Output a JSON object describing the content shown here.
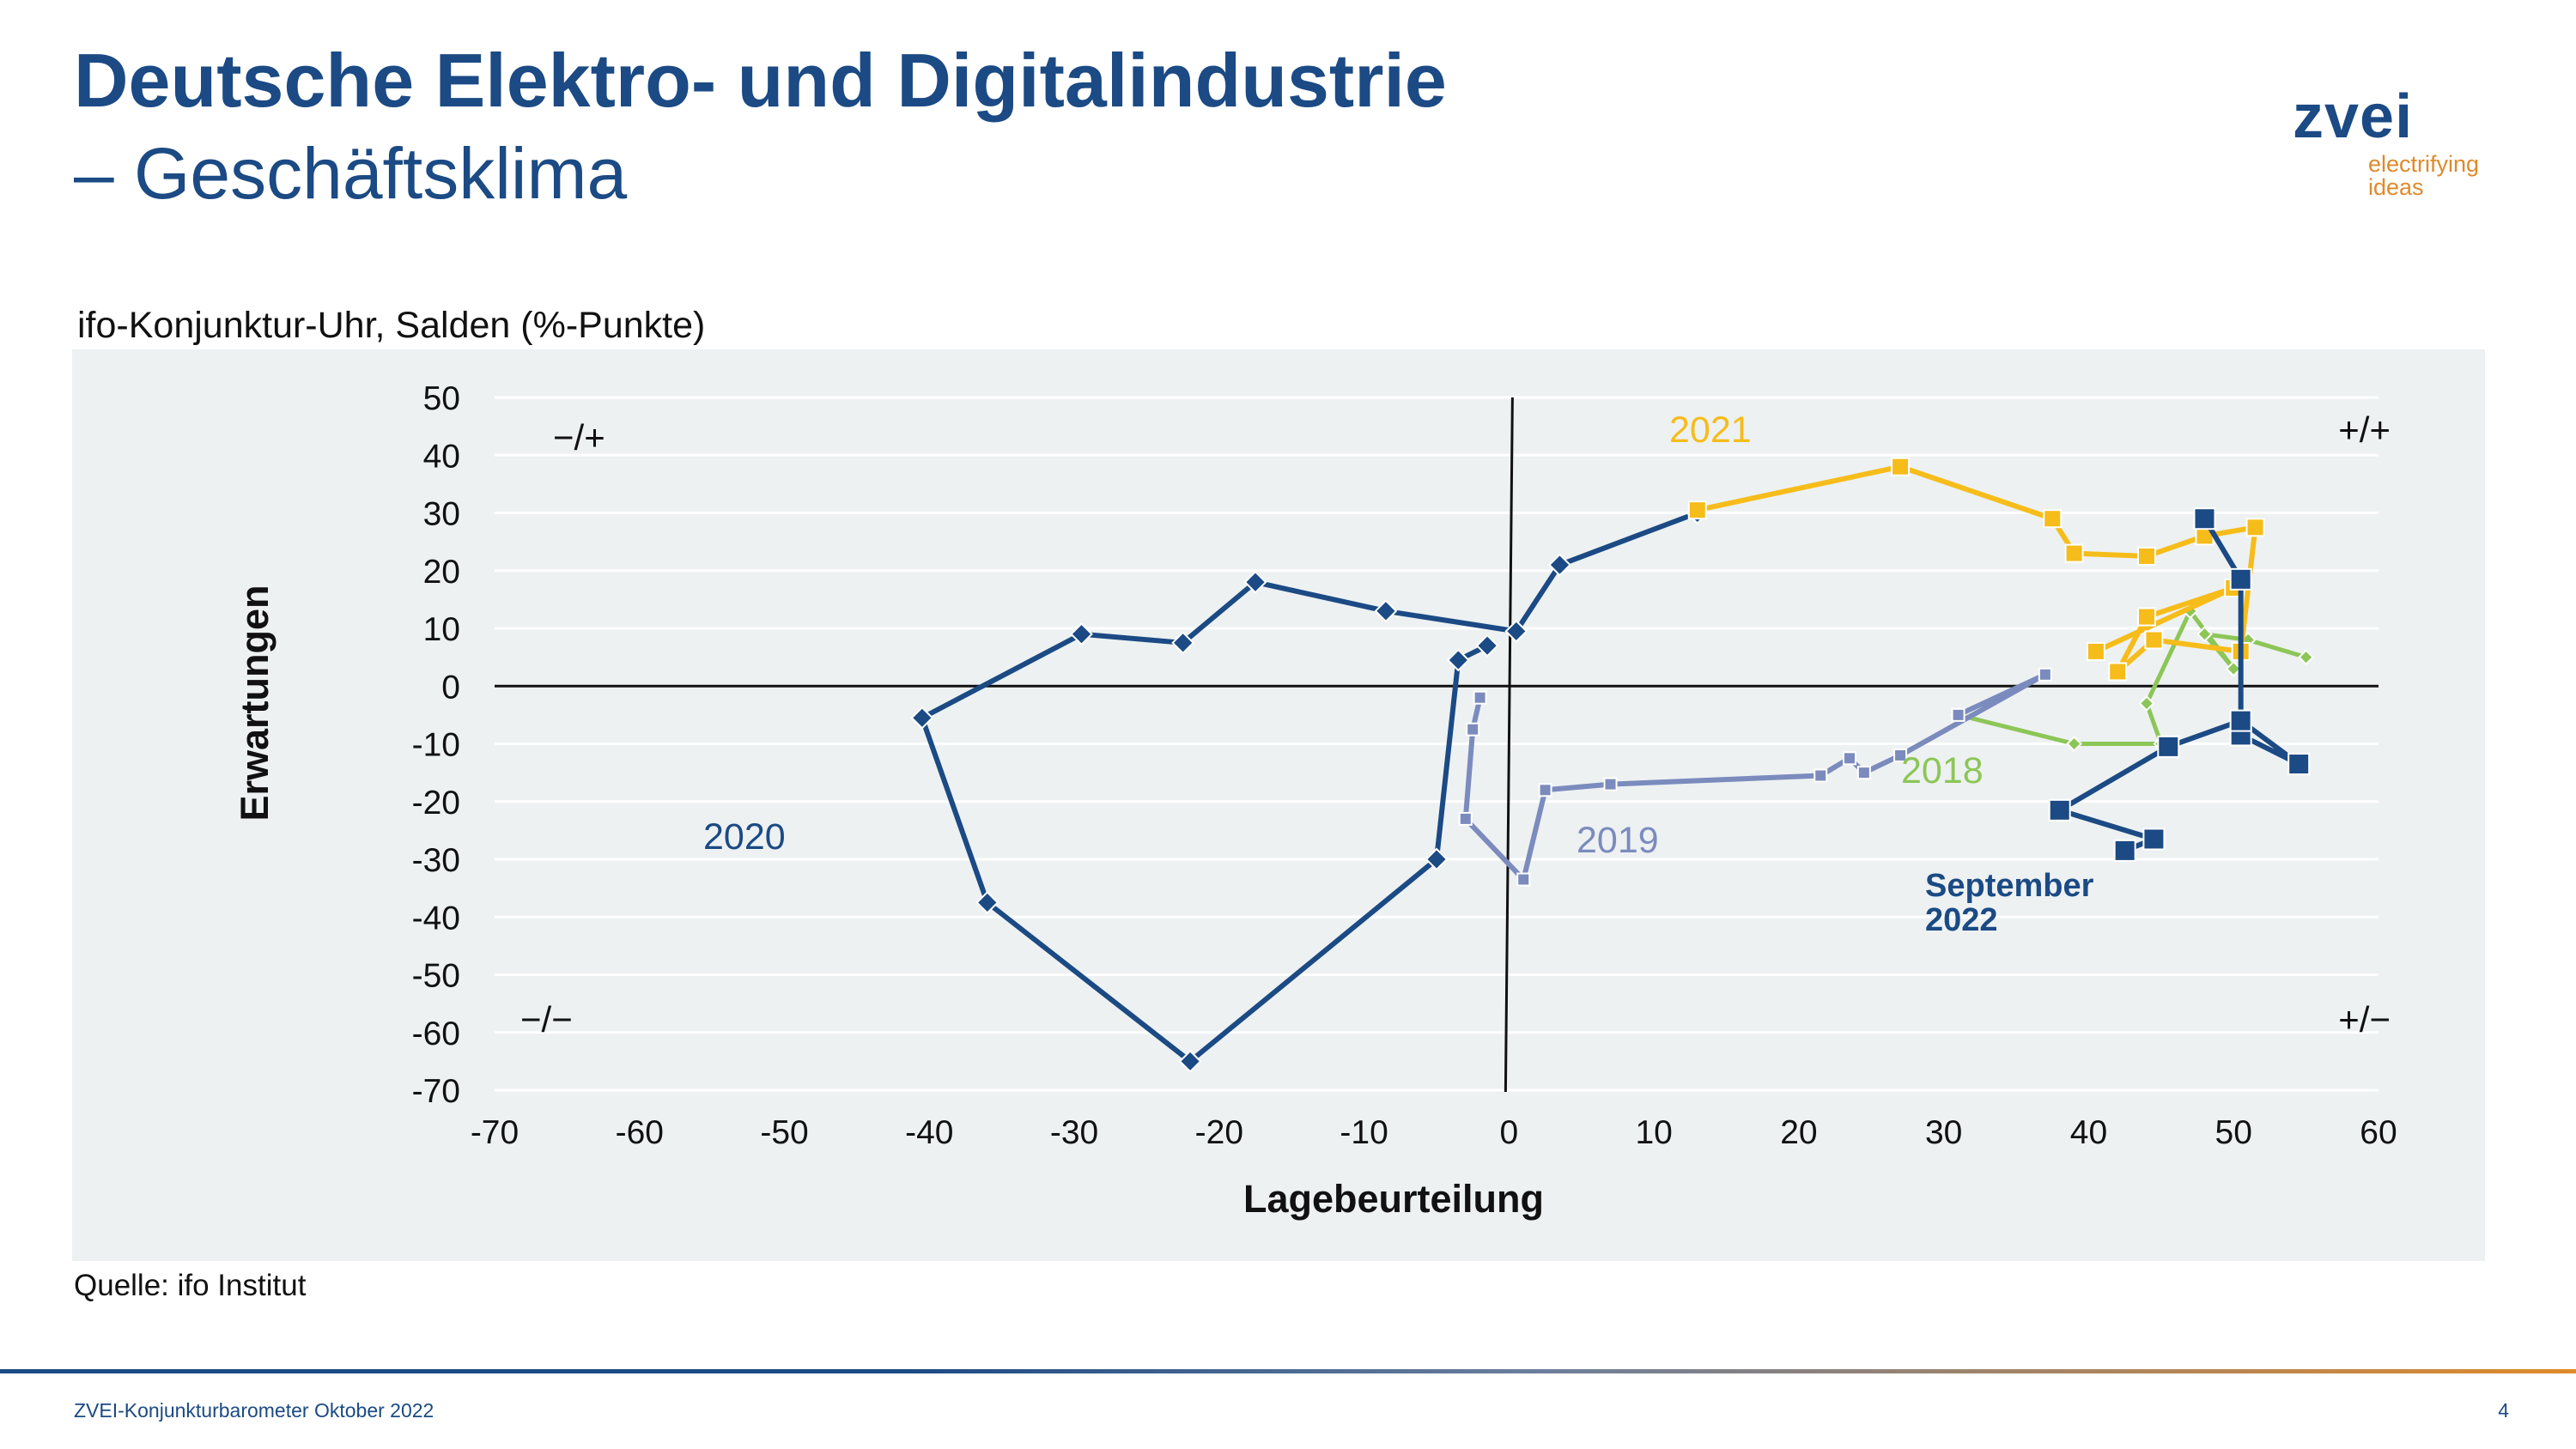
{
  "header": {
    "title": "Deutsche Elektro- und Digitalindustrie",
    "subtitle": "– Geschäftsklima"
  },
  "logo": {
    "word": "zvei",
    "tagline": "electrifying ideas"
  },
  "chart_caption": "ifo-Konjunktur-Uhr, Salden (%-Punkte)",
  "source": "Quelle: ifo Institut",
  "footer": {
    "text": "ZVEI-Konjunkturbarometer Oktober 2022",
    "page": "4"
  },
  "colors": {
    "y2018": "#8cc657",
    "y2019": "#7b8bbd",
    "y2020": "#1b4a84",
    "y2021": "#f6bc1a",
    "y2022": "#1b4a84"
  },
  "chart_data": {
    "type": "line",
    "xlabel": "Lagebeurteilung",
    "ylabel": "Erwartungen",
    "xlim": [
      -70,
      60
    ],
    "ylim": [
      -70,
      50
    ],
    "xticks": [
      -70,
      -60,
      -50,
      -40,
      -30,
      -20,
      -10,
      0,
      10,
      20,
      30,
      40,
      50,
      60
    ],
    "yticks": [
      50,
      40,
      30,
      20,
      10,
      0,
      -10,
      -20,
      -30,
      -40,
      -50,
      -60,
      -70
    ],
    "grid": true,
    "quadrant_labels": {
      "top_left": "−/+",
      "top_right": "+/+",
      "bottom_left": "−/−",
      "bottom_right": "+/−"
    },
    "series": [
      {
        "name": "2018",
        "color": "#8cc657",
        "marker": "diamond",
        "points": [
          [
            55,
            5
          ],
          [
            51,
            8
          ],
          [
            48,
            9
          ],
          [
            50,
            3
          ],
          [
            47,
            13
          ],
          [
            44,
            -3
          ],
          [
            45,
            -10
          ],
          [
            39,
            -10
          ],
          [
            31,
            -5
          ]
        ]
      },
      {
        "name": "2019",
        "color": "#7b8bbd",
        "marker": "square",
        "points": [
          [
            31,
            -5
          ],
          [
            37,
            2
          ],
          [
            27,
            -12
          ],
          [
            24.5,
            -15
          ],
          [
            23.5,
            -12.5
          ],
          [
            21.5,
            -15.5
          ],
          [
            7,
            -17
          ],
          [
            2.5,
            -18
          ],
          [
            1,
            -33.5
          ],
          [
            -3,
            -23
          ],
          [
            -2.5,
            -7.5
          ],
          [
            -2,
            -2
          ]
        ]
      },
      {
        "name": "2020",
        "color": "#1b4a84",
        "marker": "diamond",
        "points": [
          [
            -1.5,
            7
          ],
          [
            -3.5,
            4.5
          ],
          [
            -5,
            -30
          ],
          [
            -22,
            -65
          ],
          [
            -36,
            -37.5
          ],
          [
            -40.5,
            -5.5
          ],
          [
            -29.5,
            9
          ],
          [
            -22.5,
            7.5
          ],
          [
            -17.5,
            18
          ],
          [
            -8.5,
            13
          ],
          [
            0.5,
            9.5
          ],
          [
            3.5,
            21
          ],
          [
            13,
            30
          ]
        ]
      },
      {
        "name": "2021",
        "color": "#f6bc1a",
        "marker": "square",
        "points": [
          [
            13,
            30.5
          ],
          [
            27,
            38
          ],
          [
            37.5,
            29
          ],
          [
            39,
            23
          ],
          [
            44,
            22.5
          ],
          [
            48,
            26
          ],
          [
            51.5,
            27.5
          ],
          [
            50.5,
            6
          ],
          [
            44.5,
            8
          ],
          [
            42,
            2.5
          ],
          [
            44,
            12
          ],
          [
            50,
            17
          ],
          [
            40.5,
            6
          ]
        ]
      },
      {
        "name": "September 2022",
        "color": "#1b4a84",
        "marker": "square",
        "points": [
          [
            48,
            29
          ],
          [
            50.5,
            18.5
          ],
          [
            50.5,
            -8.5
          ],
          [
            54.5,
            -13.5
          ],
          [
            50.5,
            -6
          ],
          [
            45.5,
            -10.5
          ],
          [
            38,
            -21.5
          ],
          [
            44.5,
            -26.5
          ],
          [
            42.5,
            -28.5
          ]
        ]
      }
    ],
    "labels": [
      {
        "text": "2021",
        "color": "#f6bc1a"
      },
      {
        "text": "2018",
        "color": "#8cc657"
      },
      {
        "text": "2019",
        "color": "#7b8bbd"
      },
      {
        "text": "2020",
        "color": "#1b4a84"
      },
      {
        "text": "September 2022",
        "color": "#1b4a84"
      }
    ]
  }
}
